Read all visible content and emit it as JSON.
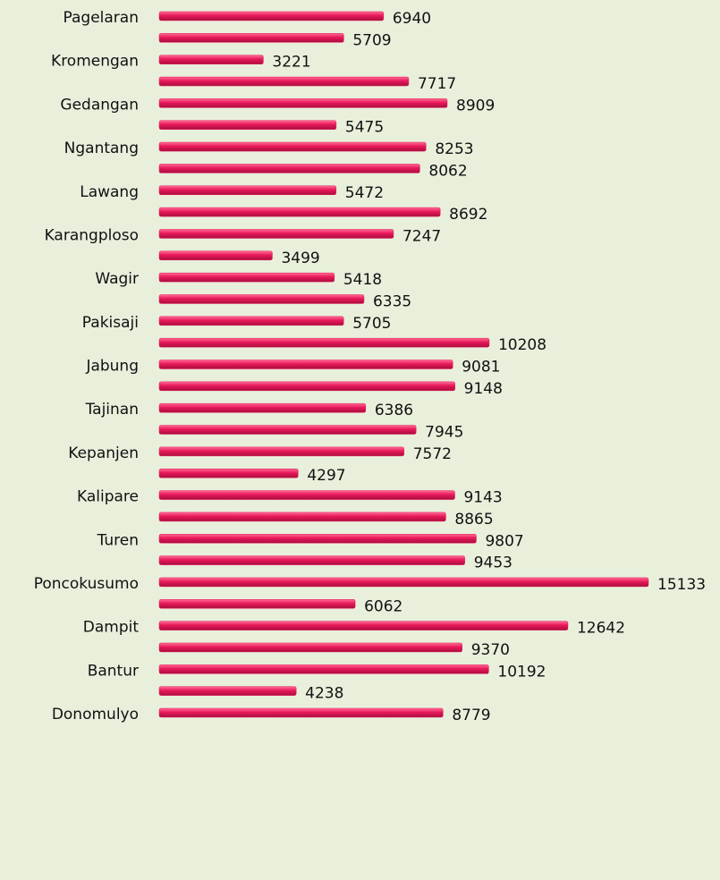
{
  "chart_data": {
    "type": "bar",
    "orientation": "horizontal",
    "categories": [
      "Pagelaran",
      null,
      "Kromengan",
      null,
      "Gedangan",
      null,
      "Ngantang",
      null,
      "Lawang",
      null,
      "Karangploso",
      null,
      "Wagir",
      null,
      "Pakisaji",
      null,
      "Jabung",
      null,
      "Tajinan",
      null,
      "Kepanjen",
      null,
      "Kalipare",
      null,
      "Turen",
      null,
      "Poncokusumo",
      null,
      "Dampit",
      null,
      "Bantur",
      null,
      "Donomulyo"
    ],
    "values": [
      6940,
      5709,
      3221,
      7717,
      8909,
      5475,
      8253,
      8062,
      5472,
      8692,
      7247,
      3499,
      5418,
      6335,
      5705,
      10208,
      9081,
      9148,
      6386,
      7945,
      7572,
      4297,
      9143,
      8865,
      9807,
      9453,
      15133,
      6062,
      12642,
      9370,
      10192,
      4238,
      8779
    ],
    "color": "#e8185a"
  }
}
